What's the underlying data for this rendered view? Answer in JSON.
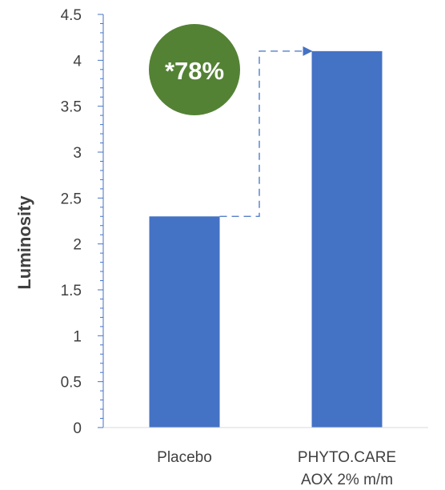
{
  "chart_data": {
    "type": "bar",
    "title": "",
    "xlabel": "",
    "ylabel": "Luminosity",
    "ylim": [
      0,
      4.5
    ],
    "yticks": [
      "0",
      "0.5",
      "1",
      "1.5",
      "2",
      "2.5",
      "3",
      "3.5",
      "4",
      "4.5"
    ],
    "categories": [
      [
        "Placebo"
      ],
      [
        "PHYTO.CARE",
        "AOX 2% m/m"
      ]
    ],
    "values": [
      2.3,
      4.1
    ],
    "bar_color": "#4472C4",
    "grid": false,
    "annotation": {
      "label": "*78%",
      "badge_color": "#548235",
      "arrow_color": "#4472C4",
      "arrow_style": "dashed",
      "from_category": 0,
      "to_category": 1
    }
  }
}
